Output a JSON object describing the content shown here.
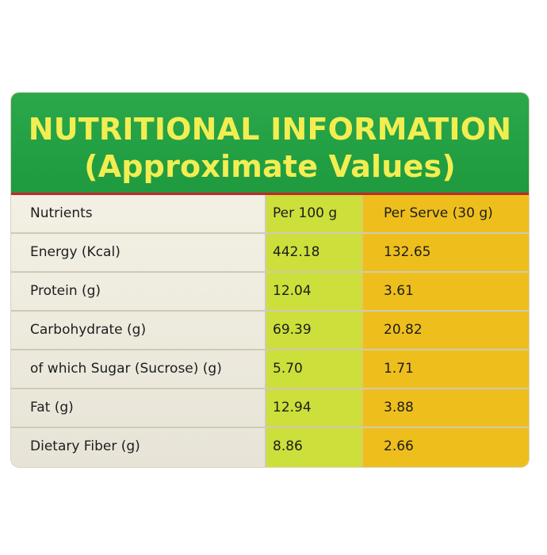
{
  "header": {
    "title": "NUTRITIONAL INFORMATION",
    "subtitle": "(Approximate Values)"
  },
  "colors": {
    "header_bg": "#1f9a3f",
    "header_text": "#f2ee52",
    "rule": "#c8242a",
    "per100_bg": "#cddf3a",
    "serve_bg": "#eebf1c"
  },
  "table": {
    "columns": [
      "Nutrients",
      "Per 100 g",
      "Per Serve (30 g)"
    ],
    "rows": [
      {
        "nutrient": "Energy (Kcal)",
        "per100": "442.18",
        "perServe": "132.65"
      },
      {
        "nutrient": "Protein (g)",
        "per100": "12.04",
        "perServe": "3.61"
      },
      {
        "nutrient": "Carbohydrate (g)",
        "per100": "69.39",
        "perServe": "20.82"
      },
      {
        "nutrient": "of which Sugar (Sucrose) (g)",
        "per100": "5.70",
        "perServe": "1.71"
      },
      {
        "nutrient": "Fat (g)",
        "per100": "12.94",
        "perServe": "3.88"
      },
      {
        "nutrient": "Dietary Fiber (g)",
        "per100": "8.86",
        "perServe": "2.66"
      }
    ]
  }
}
